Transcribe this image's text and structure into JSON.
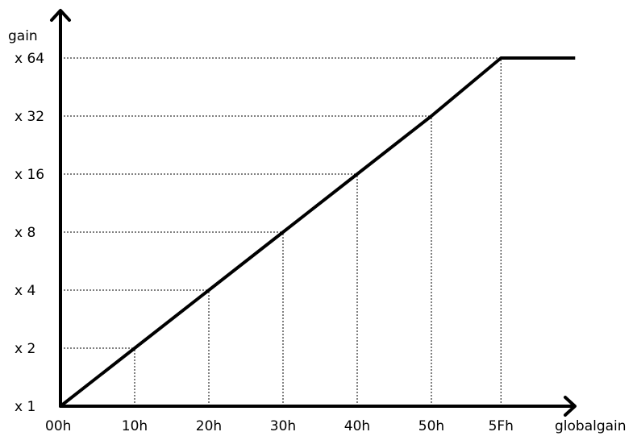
{
  "chart_data": {
    "type": "line",
    "ylabel": "gain",
    "xlabel": "globalgain",
    "x_ticks": [
      "00h",
      "10h",
      "20h",
      "30h",
      "40h",
      "50h",
      "5Fh"
    ],
    "y_ticks": [
      "x 1",
      "x 2",
      "x 4",
      "x 8",
      "x 16",
      "x 32",
      "x 64"
    ],
    "x_values": [
      0,
      16,
      32,
      48,
      64,
      80,
      95
    ],
    "y_values": [
      1,
      2,
      4,
      8,
      16,
      32,
      64
    ],
    "series": [
      {
        "points": [
          {
            "x": 0,
            "y": 1
          },
          {
            "x": 16,
            "y": 2
          },
          {
            "x": 32,
            "y": 4
          },
          {
            "x": 48,
            "y": 8
          },
          {
            "x": 64,
            "y": 16
          },
          {
            "x": 80,
            "y": 32
          },
          {
            "x": 95,
            "y": 64
          },
          {
            "x": 111,
            "y": 64
          }
        ]
      }
    ],
    "xlim": [
      0,
      111
    ],
    "y_scale": "log2",
    "ylim": [
      1,
      64
    ],
    "grid": "dashed guide lines to each tick",
    "colors": {
      "line": "#000000",
      "background": "#ffffff"
    }
  }
}
